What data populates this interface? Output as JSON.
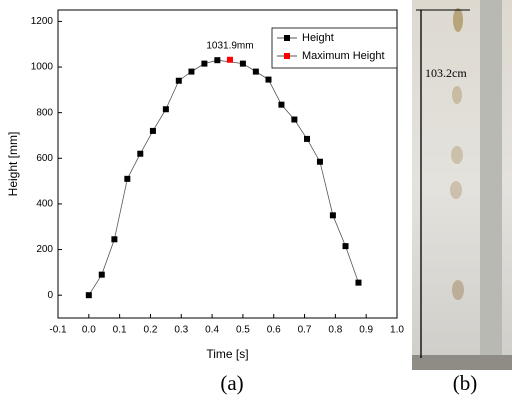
{
  "chart_data": {
    "type": "line",
    "xlabel": "Time [s]",
    "ylabel": "Height [mm]",
    "annotation": "1031.9mm",
    "series": [
      {
        "name": "Height",
        "color": "#000000",
        "x": [
          0.0,
          0.042,
          0.083,
          0.125,
          0.167,
          0.208,
          0.25,
          0.292,
          0.333,
          0.375,
          0.417,
          0.5,
          0.542,
          0.583,
          0.625,
          0.667,
          0.708,
          0.75,
          0.792,
          0.833,
          0.875
        ],
        "values": [
          0,
          90,
          245,
          510,
          620,
          720,
          815,
          940,
          980,
          1015,
          1030,
          1015,
          980,
          945,
          835,
          770,
          685,
          585,
          350,
          215,
          55
        ]
      },
      {
        "name": "Maximum Height",
        "color": "#ff0000",
        "x": [
          0.458
        ],
        "values": [
          1031.9
        ]
      }
    ],
    "xlim": [
      -0.1,
      1.0
    ],
    "ylim": [
      -100,
      1250
    ],
    "xticks": [
      {
        "value": -0.1,
        "label": "-0.1"
      },
      {
        "value": 0,
        "label": "0.0"
      },
      {
        "value": 0.1,
        "label": "0.1"
      },
      {
        "value": 0.2,
        "label": "0.2"
      },
      {
        "value": 0.3,
        "label": "0.3"
      },
      {
        "value": 0.4,
        "label": "0.4"
      },
      {
        "value": 0.5,
        "label": "0.5"
      },
      {
        "value": 0.6,
        "label": "0.6"
      },
      {
        "value": 0.7,
        "label": "0.7"
      },
      {
        "value": 0.8,
        "label": "0.8"
      },
      {
        "value": 0.9,
        "label": "0.9"
      },
      {
        "value": 1.0,
        "label": "1.0"
      }
    ],
    "yticks": [
      0,
      200,
      400,
      600,
      800,
      1000,
      1200
    ],
    "legend": "upper-right"
  },
  "photo": {
    "annotation": "103.2cm"
  },
  "captions": [
    "(a)",
    "(b)"
  ]
}
